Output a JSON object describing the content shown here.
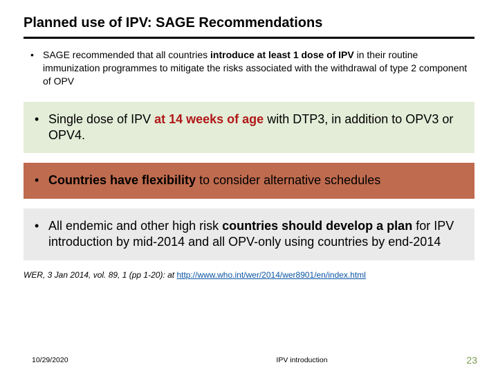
{
  "title": "Planned use of IPV: SAGE Recommendations",
  "bullets": {
    "intro": {
      "pre": "SAGE recommended that all countries ",
      "bold": "introduce at least 1 dose of IPV",
      "post": " in their routine immunization programmes to mitigate the risks associated with the withdrawal of type 2 component of OPV"
    },
    "green": {
      "pre": "Single dose of IPV ",
      "emph": "at 14 weeks of age",
      "post": " with DTP3, in addition to OPV3 or OPV4."
    },
    "brown": {
      "bold": "Countries have flexibility",
      "post": " to consider alternative schedules"
    },
    "gray": {
      "pre": "All endemic and other high risk ",
      "bold": "countries should develop a plan",
      "post": " for IPV introduction by mid-2014 and all OPV-only using countries by end-2014"
    }
  },
  "citation": {
    "pre": "WER, 3 Jan 2014, vol. 89, 1 (pp 1-20): at ",
    "link": "http://www.who.int/wer/2014/wer8901/en/index.html"
  },
  "footer": {
    "date": "10/29/2020",
    "center": "IPV introduction",
    "page": "23"
  },
  "colors": {
    "green_bg": "#e4edd8",
    "brown_bg": "#bf6b4f",
    "gray_bg": "#eaeaea",
    "red_text": "#b01818",
    "link": "#0b54a3",
    "page_num": "#7a9a52"
  }
}
